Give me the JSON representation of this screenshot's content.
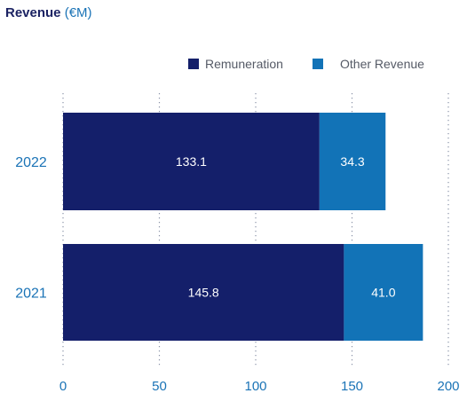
{
  "chart_data": {
    "type": "bar",
    "orientation": "horizontal",
    "stacked": true,
    "title": "Revenue",
    "title_unit": "(€M)",
    "categories": [
      "2022",
      "2021"
    ],
    "series": [
      {
        "name": "Remuneration",
        "values": [
          133.1,
          145.8
        ],
        "color": "#141f6a",
        "labels": [
          "133.1",
          "145.8"
        ]
      },
      {
        "name": "Other Revenue",
        "values": [
          34.3,
          41.0
        ],
        "color": "#1273b7",
        "labels": [
          "34.3",
          "41.0"
        ]
      }
    ],
    "xlim": [
      0,
      200
    ],
    "xticks": [
      0,
      50,
      100,
      150,
      200
    ],
    "xtick_labels": [
      "0",
      "50",
      "100",
      "150",
      "200"
    ],
    "grid": "vertical dotted",
    "legend_position": "top-right",
    "colors": {
      "title": "#1c2363",
      "unit": "#1a73b6",
      "axis_text": "#1a73b6",
      "label_text": "#ffffff"
    }
  }
}
